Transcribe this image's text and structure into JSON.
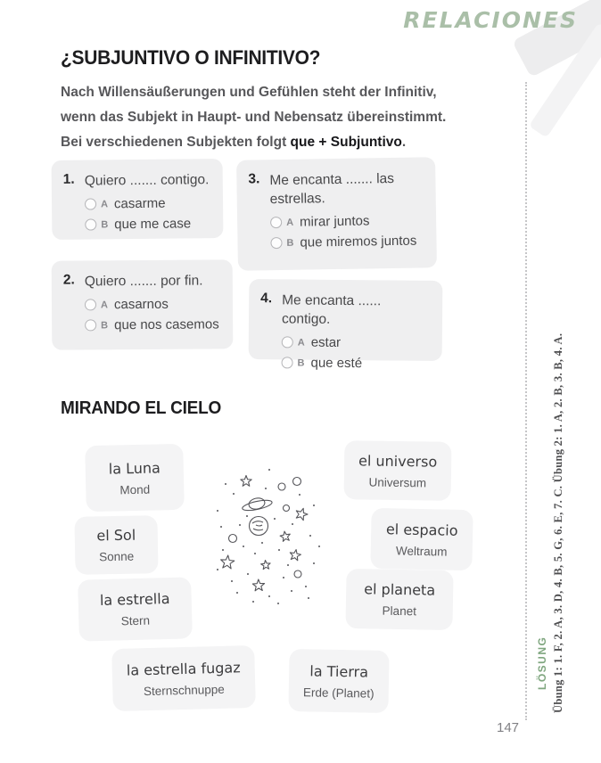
{
  "brand": "RELACIONES",
  "exercise": {
    "title": "¿SUBJUNTIVO O INFINITIVO?",
    "intro": {
      "line1": "Nach Willensäußerungen und Gefühlen steht der Infinitiv,",
      "line2": "wenn das Subjekt in Haupt- und Nebensatz übereinstimmt.",
      "line3_prefix": "Bei verschiedenen Subjekten folgt ",
      "line3_bold": "que + Subjuntivo",
      "line3_suffix": "."
    },
    "questions": [
      {
        "number": "1.",
        "text": "Quiero ....... contigo.",
        "options": [
          {
            "letter": "A",
            "label": "casarme"
          },
          {
            "letter": "B",
            "label": "que me case"
          }
        ]
      },
      {
        "number": "2.",
        "text": "Quiero ....... por fin.",
        "options": [
          {
            "letter": "A",
            "label": "casarnos"
          },
          {
            "letter": "B",
            "label": "que nos casemos"
          }
        ]
      },
      {
        "number": "3.",
        "text": "Me encanta ....... las estrellas.",
        "options": [
          {
            "letter": "A",
            "label": "mirar juntos"
          },
          {
            "letter": "B",
            "label": "que miremos juntos"
          }
        ]
      },
      {
        "number": "4.",
        "text": "Me encanta ...... contigo.",
        "options": [
          {
            "letter": "A",
            "label": "estar"
          },
          {
            "letter": "B",
            "label": "que esté"
          }
        ]
      }
    ]
  },
  "vocab": {
    "title": "MIRANDO EL CIELO",
    "cards": [
      {
        "es": "la Luna",
        "de": "Mond"
      },
      {
        "es": "el universo",
        "de": "Universum"
      },
      {
        "es": "el Sol",
        "de": "Sonne"
      },
      {
        "es": "el espacio",
        "de": "Weltraum"
      },
      {
        "es": "la estrella",
        "de": "Stern"
      },
      {
        "es": "el planeta",
        "de": "Planet"
      },
      {
        "es": "la estrella fugaz",
        "de": "Sternschnuppe"
      },
      {
        "es": "la Tierra",
        "de": "Erde (Planet)"
      }
    ]
  },
  "solution": {
    "label": "LÖSUNG",
    "answers": "Übung 1: 1. F, 2. A, 3. D, 4. B, 5. G, 6. E, 7. C. Übung 2: 1. A, 2. B, 3. B, 4. A."
  },
  "page_number": "147",
  "colors": {
    "heading": "#1d1d1f",
    "body_gray": "#57575a",
    "brand_green": "#aabfa8",
    "solution_green": "#7fa67f",
    "question_card_bg": "#efeff0",
    "vocab_card_bg": "#f4f4f5"
  }
}
